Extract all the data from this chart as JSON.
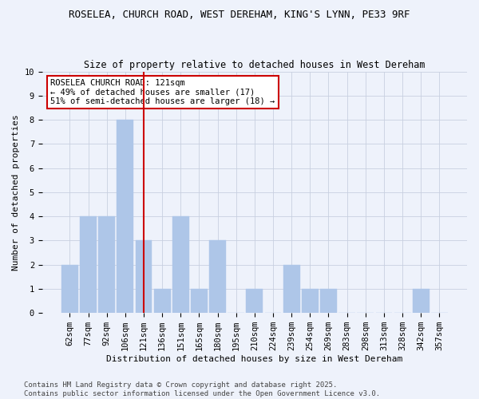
{
  "title1": "ROSELEA, CHURCH ROAD, WEST DEREHAM, KING'S LYNN, PE33 9RF",
  "title2": "Size of property relative to detached houses in West Dereham",
  "xlabel": "Distribution of detached houses by size in West Dereham",
  "ylabel": "Number of detached properties",
  "categories": [
    "62sqm",
    "77sqm",
    "92sqm",
    "106sqm",
    "121sqm",
    "136sqm",
    "151sqm",
    "165sqm",
    "180sqm",
    "195sqm",
    "210sqm",
    "224sqm",
    "239sqm",
    "254sqm",
    "269sqm",
    "283sqm",
    "298sqm",
    "313sqm",
    "328sqm",
    "342sqm",
    "357sqm"
  ],
  "values": [
    2,
    4,
    4,
    8,
    3,
    1,
    4,
    1,
    3,
    0,
    1,
    0,
    2,
    1,
    1,
    0,
    0,
    0,
    0,
    1,
    0
  ],
  "bar_color": "#aec6e8",
  "bar_edge_color": "#aec6e8",
  "vline_index": 4,
  "vline_color": "#cc0000",
  "annotation_text": "ROSELEA CHURCH ROAD: 121sqm\n← 49% of detached houses are smaller (17)\n51% of semi-detached houses are larger (18) →",
  "annotation_box_color": "#ffffff",
  "annotation_box_edge": "#cc0000",
  "ylim": [
    0,
    10
  ],
  "yticks": [
    0,
    1,
    2,
    3,
    4,
    5,
    6,
    7,
    8,
    9,
    10
  ],
  "footer": "Contains HM Land Registry data © Crown copyright and database right 2025.\nContains public sector information licensed under the Open Government Licence v3.0.",
  "bg_color": "#eef2fb",
  "plot_bg_color": "#eef2fb",
  "title1_fontsize": 9,
  "title2_fontsize": 8.5,
  "axis_label_fontsize": 8,
  "tick_fontsize": 7.5,
  "footer_fontsize": 6.5,
  "annotation_fontsize": 7.5
}
